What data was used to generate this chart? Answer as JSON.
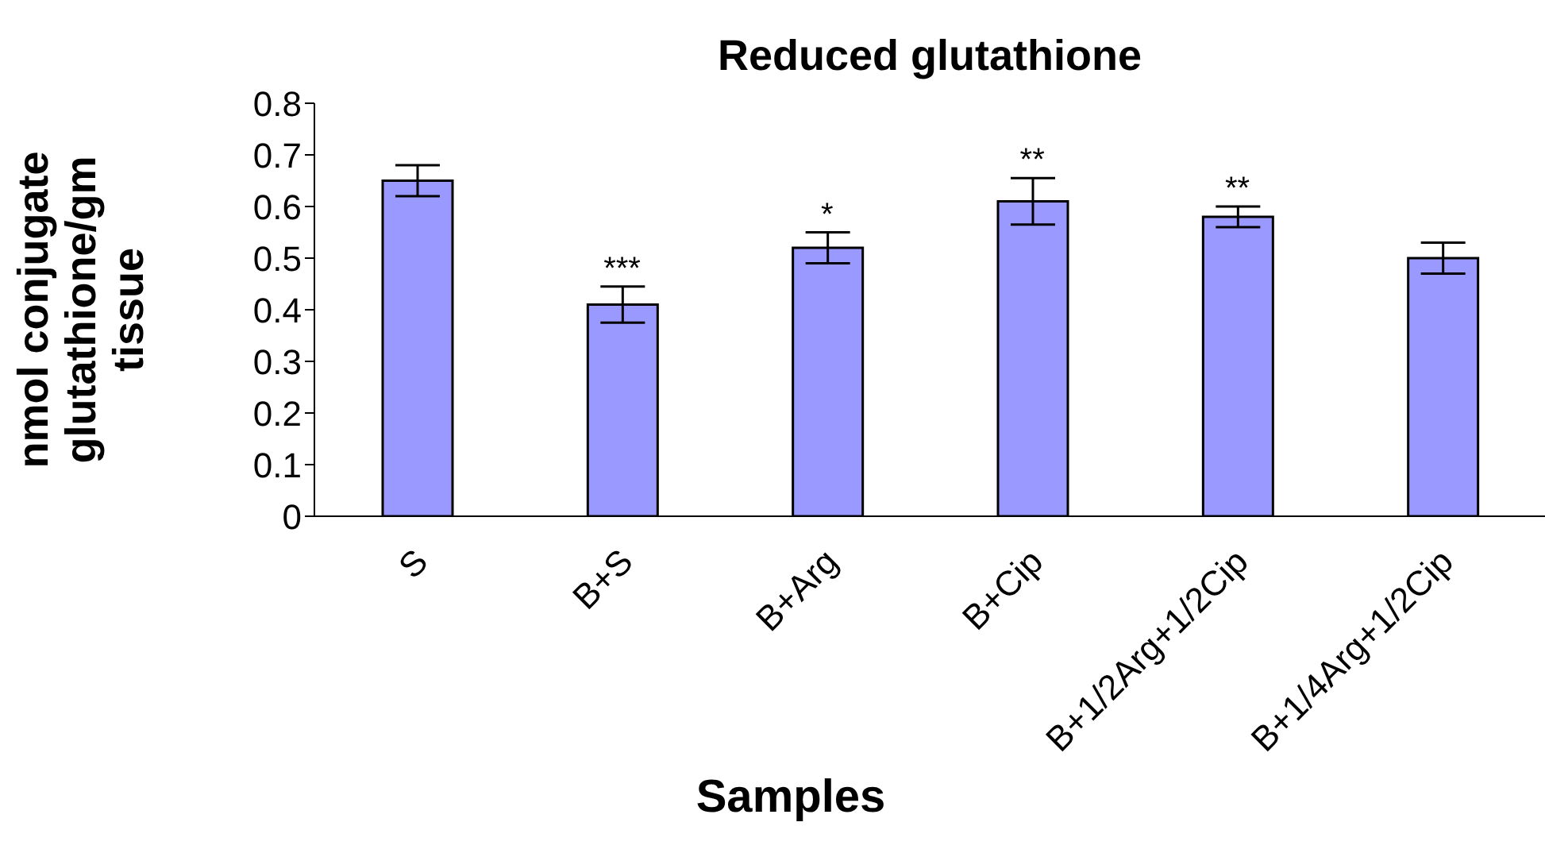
{
  "chart_data": {
    "type": "bar",
    "title": "Reduced glutathione",
    "xlabel": "Samples",
    "ylabel": "nmol conjugate glutathione/gm tissue",
    "categories": [
      "S",
      "B+S",
      "B+Arg",
      "B+Cip",
      "B+1/2Arg+1/2Cip",
      "B+1/4Arg+1/2Cip"
    ],
    "values": [
      0.65,
      0.41,
      0.52,
      0.61,
      0.58,
      0.5
    ],
    "errors": [
      0.03,
      0.035,
      0.03,
      0.045,
      0.02,
      0.03
    ],
    "color": "#9999ff",
    "ylim": [
      0,
      0.8
    ],
    "yticks": [
      0,
      0.1,
      0.2,
      0.3,
      0.4,
      0.5,
      0.6,
      0.7,
      0.8
    ],
    "annotations": [
      {
        "text": "***",
        "x": "B+S",
        "y": 0.445
      },
      {
        "text": "*",
        "x": "B+Arg",
        "y": 0.55
      },
      {
        "text": "**",
        "x": "B+Cip",
        "y": 0.655
      },
      {
        "text": "**",
        "x": "B+1/2Arg+1/2Cip",
        "y": 0.6
      }
    ],
    "grid": false,
    "legend": false
  }
}
